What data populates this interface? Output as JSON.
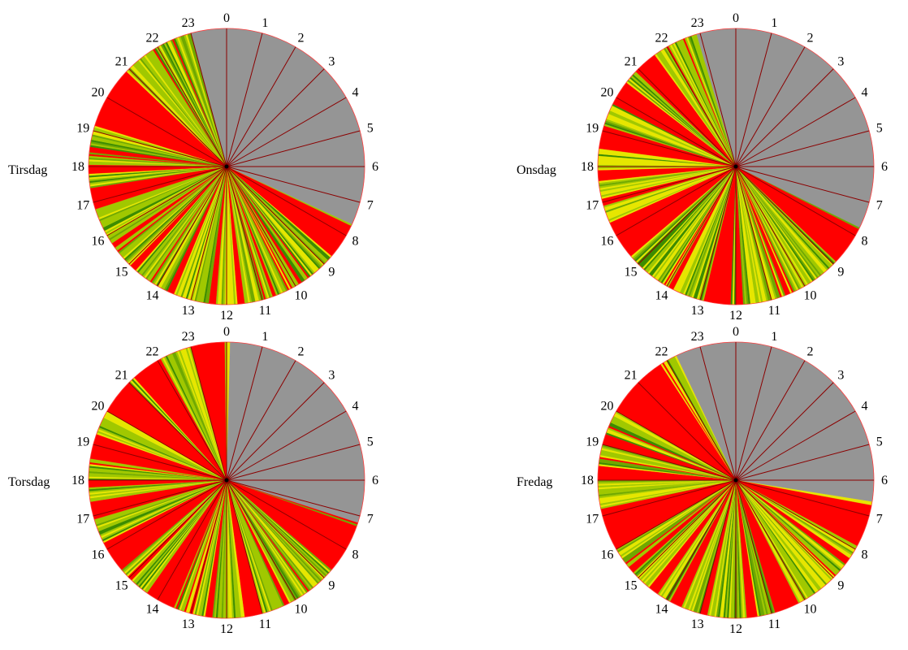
{
  "chart_data": {
    "type": "polar-day-clock",
    "hour_labels": [
      "0",
      "1",
      "2",
      "3",
      "4",
      "5",
      "6",
      "7",
      "8",
      "9",
      "10",
      "11",
      "12",
      "13",
      "14",
      "15",
      "16",
      "17",
      "18",
      "19",
      "20",
      "21",
      "22",
      "23"
    ],
    "colors": {
      "no_data": "#959595",
      "congested": "#ff0000",
      "slow": "#e6e600",
      "moderate": "#a0c800",
      "free": "#6fa800",
      "free_dark": "#3c8c00",
      "hour_line": "#8b0000",
      "outline": "#ff4040"
    },
    "days": [
      {
        "name": "Tirsdag",
        "gray_ranges": [
          [
            23.0,
            7.65
          ]
        ],
        "red_ranges": [
          [
            7.7,
            8.7
          ],
          [
            16.8,
            17.4
          ],
          [
            19.2,
            20.9
          ],
          [
            13.5,
            13.7
          ],
          [
            11.5,
            11.7
          ],
          [
            12.3,
            12.5
          ],
          [
            14.8,
            14.95
          ],
          [
            15.6,
            15.75
          ],
          [
            17.8,
            18.0
          ],
          [
            18.4,
            18.55
          ],
          [
            10.6,
            10.7
          ],
          [
            9.8,
            9.9
          ]
        ],
        "seed": 11
      },
      {
        "name": "Onsdag",
        "gray_ranges": [
          [
            22.9,
            7.75
          ]
        ],
        "red_ranges": [
          [
            7.8,
            8.9
          ],
          [
            12.2,
            12.9
          ],
          [
            15.3,
            16.4
          ],
          [
            17.6,
            17.9
          ],
          [
            18.5,
            19.1
          ],
          [
            19.8,
            20.5
          ],
          [
            20.9,
            21.6
          ],
          [
            13.8,
            13.95
          ],
          [
            16.9,
            17.1
          ],
          [
            11.8,
            11.95
          ],
          [
            10.5,
            10.6
          ]
        ],
        "seed": 23
      },
      {
        "name": "Torsdag",
        "gray_ranges": [
          [
            0.1,
            7.2
          ]
        ],
        "red_ranges": [
          [
            23.0,
            23.95
          ],
          [
            21.2,
            22.1
          ],
          [
            20.0,
            21.0
          ],
          [
            7.3,
            8.7
          ],
          [
            15.3,
            16.2
          ],
          [
            13.5,
            14.3
          ],
          [
            11.0,
            11.5
          ],
          [
            12.4,
            12.6
          ],
          [
            16.9,
            17.4
          ],
          [
            18.6,
            19.3
          ],
          [
            17.8,
            18.0
          ],
          [
            14.9,
            15.05
          ],
          [
            10.2,
            10.35
          ]
        ],
        "seed": 37
      },
      {
        "name": "Fredag",
        "gray_ranges": [
          [
            22.3,
            6.6
          ]
        ],
        "red_ranges": [
          [
            6.7,
            7.9
          ],
          [
            16.0,
            17.2
          ],
          [
            18.0,
            18.4
          ],
          [
            20.0,
            21.8
          ],
          [
            10.2,
            10.9
          ],
          [
            11.4,
            11.7
          ],
          [
            13.6,
            13.9
          ],
          [
            14.3,
            14.6
          ],
          [
            12.8,
            13.0
          ],
          [
            8.3,
            8.5
          ],
          [
            15.2,
            15.35
          ],
          [
            19.0,
            19.3
          ]
        ],
        "seed": 53
      }
    ]
  }
}
